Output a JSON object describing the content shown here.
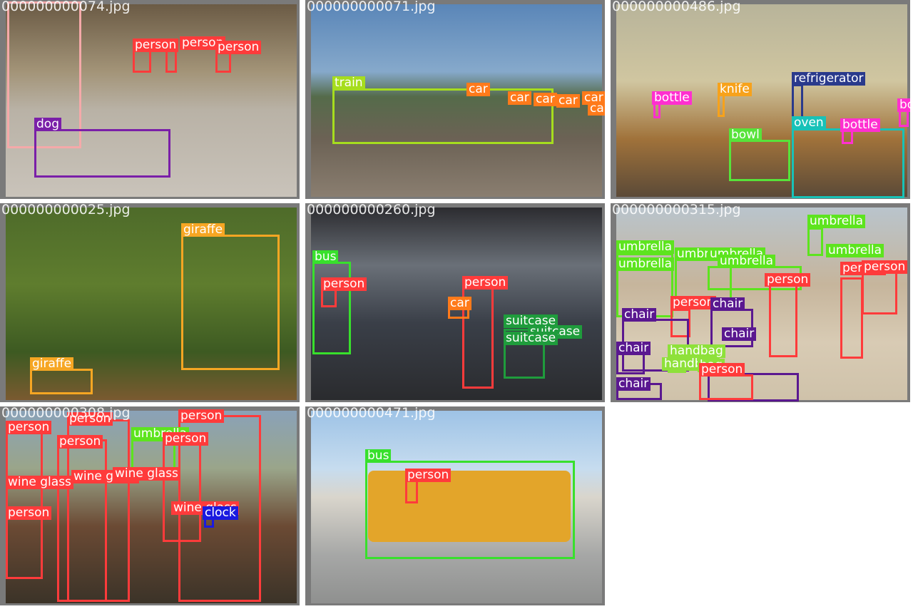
{
  "tiles": [
    {
      "filename": "000000000074.jpg",
      "labels": [
        "person",
        "person",
        "person",
        "dog"
      ]
    },
    {
      "filename": "000000000071.jpg",
      "labels": [
        "train",
        "car",
        "car",
        "car",
        "car",
        "car",
        "car"
      ]
    },
    {
      "filename": "000000000486.jpg",
      "labels": [
        "refrigerator",
        "bottle",
        "knife",
        "oven",
        "bottle",
        "bowl",
        "bo"
      ]
    },
    {
      "filename": "000000000025.jpg",
      "labels": [
        "giraffe",
        "giraffe"
      ]
    },
    {
      "filename": "000000000260.jpg",
      "labels": [
        "bus",
        "person",
        "person",
        "car",
        "suitcase",
        "suitcase",
        "suitcase"
      ]
    },
    {
      "filename": "000000000315.jpg",
      "labels": [
        "umbrella",
        "umbrella",
        "umbrella",
        "umbrella",
        "umbrella",
        "umbrella",
        "umbrella",
        "person",
        "person",
        "person",
        "person",
        "chair",
        "chair",
        "chair",
        "chair",
        "chair",
        "handbag",
        "handbag",
        "bag",
        "person"
      ]
    },
    {
      "filename": "000000000308.jpg",
      "labels": [
        "person",
        "person",
        "person",
        "person",
        "umbrella",
        "person",
        "wine glass",
        "wine glass",
        "wine glass",
        "person",
        "wine glass",
        "clock"
      ]
    },
    {
      "filename": "000000000471.jpg",
      "labels": [
        "bus",
        "person"
      ]
    }
  ],
  "colors": {
    "person": "#ff3b3b",
    "car": "#ff7a1a",
    "train": "#a6dd1e",
    "bus": "#38e02c",
    "dog": "#7a1fa8",
    "giraffe": "#f6a623",
    "suitcase": "#1f9c3c",
    "refrigerator": "#2a3a8c",
    "bottle": "#ff2fd0",
    "knife": "#f7a21b",
    "oven": "#18c2b8",
    "bowl": "#57e33a",
    "umbrella": "#5de41e",
    "chair": "#5a1890",
    "handbag": "#8ee13a",
    "wine glass": "#ff3b3b",
    "clock": "#1a1ae0",
    "pale": "#f5a9a9"
  }
}
